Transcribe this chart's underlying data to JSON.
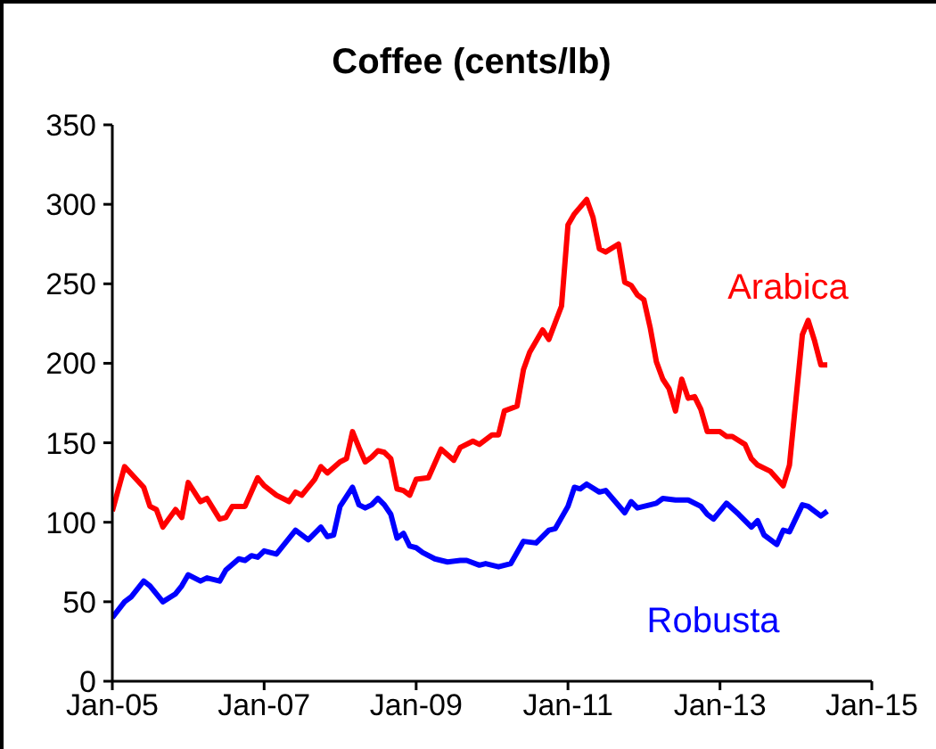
{
  "chart_data": {
    "type": "line",
    "title": "Coffee (cents/lb)",
    "xlim": [
      "2005-01",
      "2015-01"
    ],
    "xticks": [
      {
        "value": "2005-01",
        "label": "Jan-05"
      },
      {
        "value": "2007-01",
        "label": "Jan-07"
      },
      {
        "value": "2009-01",
        "label": "Jan-09"
      },
      {
        "value": "2011-01",
        "label": "Jan-11"
      },
      {
        "value": "2013-01",
        "label": "Jan-13"
      },
      {
        "value": "2015-01",
        "label": "Jan-15"
      }
    ],
    "ylim": [
      0,
      350
    ],
    "yticks": [
      0,
      50,
      100,
      150,
      200,
      250,
      300,
      350
    ],
    "grid": false,
    "legend": false,
    "marker": "none",
    "line_style": "solid",
    "series": [
      {
        "name": "Arabica",
        "color": "#ff0000",
        "x": [
          "2005-01",
          "2005-03",
          "2005-06",
          "2005-07",
          "2005-08",
          "2005-09",
          "2005-11",
          "2005-12",
          "2006-01",
          "2006-03",
          "2006-04",
          "2006-06",
          "2006-07",
          "2006-08",
          "2006-10",
          "2006-12",
          "2007-01",
          "2007-03",
          "2007-05",
          "2007-06",
          "2007-07",
          "2007-09",
          "2007-10",
          "2007-11",
          "2008-01",
          "2008-02",
          "2008-03",
          "2008-04",
          "2008-05",
          "2008-06",
          "2008-07",
          "2008-08",
          "2008-09",
          "2008-10",
          "2008-11",
          "2008-12",
          "2009-01",
          "2009-03",
          "2009-05",
          "2009-07",
          "2009-08",
          "2009-10",
          "2009-11",
          "2010-01",
          "2010-02",
          "2010-03",
          "2010-05",
          "2010-06",
          "2010-07",
          "2010-09",
          "2010-10",
          "2010-12",
          "2011-01",
          "2011-02",
          "2011-04",
          "2011-05",
          "2011-06",
          "2011-07",
          "2011-09",
          "2011-10",
          "2011-11",
          "2011-12",
          "2012-01",
          "2012-02",
          "2012-03",
          "2012-04",
          "2012-05",
          "2012-06",
          "2012-07",
          "2012-08",
          "2012-09",
          "2012-10",
          "2012-11",
          "2013-01",
          "2013-02",
          "2013-03",
          "2013-05",
          "2013-06",
          "2013-07",
          "2013-09",
          "2013-11",
          "2013-12",
          "2014-02",
          "2014-03",
          "2014-04",
          "2014-05",
          "2014-06"
        ],
        "values": [
          107,
          135,
          122,
          110,
          108,
          97,
          108,
          103,
          125,
          113,
          115,
          102,
          103,
          110,
          110,
          128,
          123,
          117,
          113,
          119,
          117,
          127,
          135,
          131,
          138,
          140,
          157,
          147,
          138,
          141,
          145,
          144,
          140,
          121,
          120,
          117,
          127,
          128,
          146,
          139,
          147,
          151,
          149,
          155,
          155,
          170,
          173,
          196,
          207,
          221,
          215,
          236,
          287,
          294,
          303,
          292,
          272,
          270,
          275,
          251,
          249,
          243,
          240,
          222,
          201,
          190,
          184,
          170,
          190,
          178,
          179,
          171,
          157,
          157,
          154,
          154,
          149,
          140,
          136,
          132,
          123,
          136,
          218,
          227,
          214,
          199,
          199
        ]
      },
      {
        "name": "Robusta",
        "color": "#0000ff",
        "x": [
          "2005-01",
          "2005-03",
          "2005-04",
          "2005-06",
          "2005-07",
          "2005-09",
          "2005-11",
          "2005-12",
          "2006-01",
          "2006-03",
          "2006-04",
          "2006-06",
          "2006-07",
          "2006-09",
          "2006-10",
          "2006-11",
          "2006-12",
          "2007-01",
          "2007-03",
          "2007-04",
          "2007-06",
          "2007-08",
          "2007-10",
          "2007-11",
          "2007-12",
          "2008-01",
          "2008-03",
          "2008-04",
          "2008-05",
          "2008-06",
          "2008-07",
          "2008-08",
          "2008-09",
          "2008-10",
          "2008-11",
          "2008-12",
          "2009-01",
          "2009-02",
          "2009-04",
          "2009-05",
          "2009-06",
          "2009-08",
          "2009-09",
          "2009-11",
          "2009-12",
          "2010-02",
          "2010-04",
          "2010-06",
          "2010-08",
          "2010-10",
          "2010-11",
          "2011-01",
          "2011-02",
          "2011-03",
          "2011-04",
          "2011-06",
          "2011-07",
          "2011-10",
          "2011-11",
          "2011-12",
          "2012-02",
          "2012-03",
          "2012-04",
          "2012-06",
          "2012-08",
          "2012-10",
          "2012-11",
          "2012-12",
          "2013-02",
          "2013-04",
          "2013-06",
          "2013-07",
          "2013-08",
          "2013-10",
          "2013-11",
          "2013-12",
          "2014-02",
          "2014-03",
          "2014-05",
          "2014-06"
        ],
        "values": [
          40,
          50,
          53,
          63,
          60,
          50,
          55,
          60,
          67,
          63,
          65,
          63,
          70,
          77,
          76,
          79,
          78,
          82,
          80,
          85,
          95,
          89,
          97,
          91,
          92,
          110,
          122,
          111,
          109,
          111,
          115,
          111,
          105,
          90,
          93,
          85,
          84,
          81,
          77,
          76,
          75,
          76,
          76,
          73,
          74,
          72,
          74,
          88,
          87,
          95,
          96,
          110,
          122,
          121,
          124,
          119,
          120,
          106,
          113,
          109,
          111,
          112,
          115,
          114,
          114,
          110,
          105,
          102,
          112,
          105,
          97,
          101,
          92,
          86,
          95,
          94,
          111,
          110,
          104,
          107
        ]
      }
    ]
  }
}
